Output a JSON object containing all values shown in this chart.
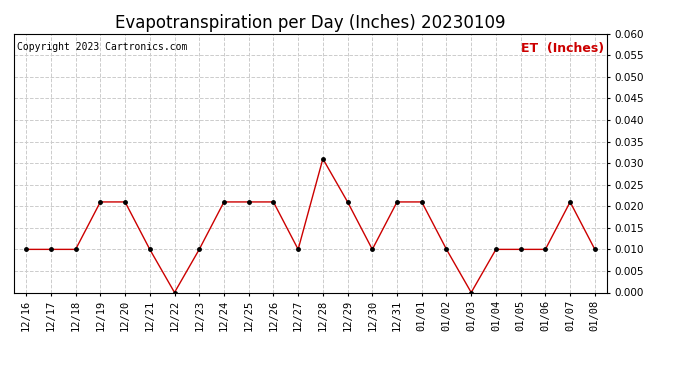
{
  "title": "Evapotranspiration per Day (Inches) 20230109",
  "copyright": "Copyright 2023 Cartronics.com",
  "legend_label": "ET  (Inches)",
  "dates": [
    "12/16",
    "12/17",
    "12/18",
    "12/19",
    "12/20",
    "12/21",
    "12/22",
    "12/23",
    "12/24",
    "12/25",
    "12/26",
    "12/27",
    "12/28",
    "12/29",
    "12/30",
    "12/31",
    "01/01",
    "01/02",
    "01/03",
    "01/04",
    "01/05",
    "01/06",
    "01/07",
    "01/08"
  ],
  "values": [
    0.01,
    0.01,
    0.01,
    0.021,
    0.021,
    0.01,
    0.0,
    0.01,
    0.021,
    0.021,
    0.021,
    0.01,
    0.031,
    0.021,
    0.01,
    0.021,
    0.021,
    0.01,
    0.0,
    0.01,
    0.01,
    0.01,
    0.021,
    0.01
  ],
  "line_color": "#cc0000",
  "marker_color": "#000000",
  "background_color": "#ffffff",
  "grid_color": "#cccccc",
  "ylim": [
    0.0,
    0.06
  ],
  "yticks": [
    0.0,
    0.005,
    0.01,
    0.015,
    0.02,
    0.025,
    0.03,
    0.035,
    0.04,
    0.045,
    0.05,
    0.055,
    0.06
  ],
  "title_fontsize": 12,
  "copyright_fontsize": 7,
  "legend_fontsize": 9,
  "tick_fontsize": 7.5
}
